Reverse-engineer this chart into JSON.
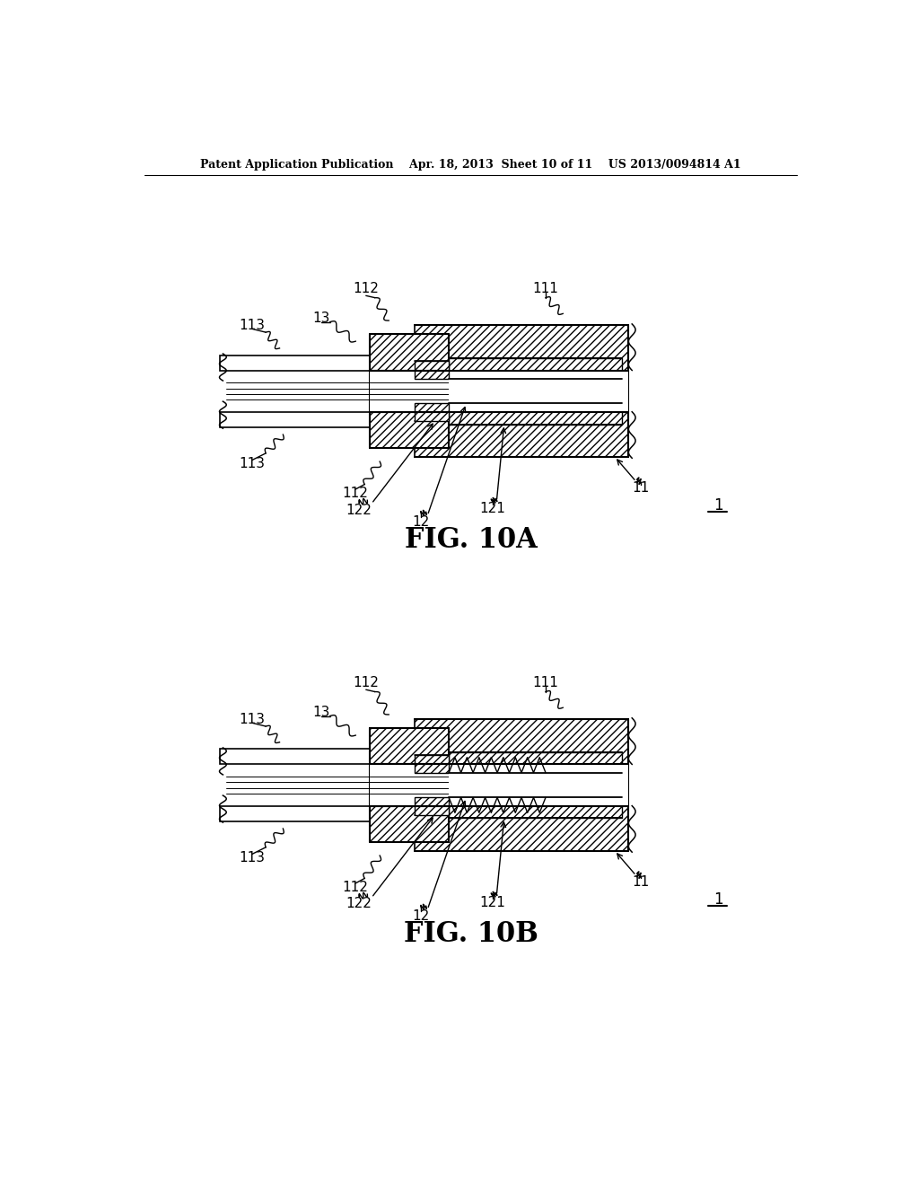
{
  "bg_color": "#ffffff",
  "header_text": "Patent Application Publication    Apr. 18, 2013  Sheet 10 of 11    US 2013/0094814 A1",
  "fig10a_label": "FIG. 10A",
  "fig10b_label": "FIG. 10B"
}
